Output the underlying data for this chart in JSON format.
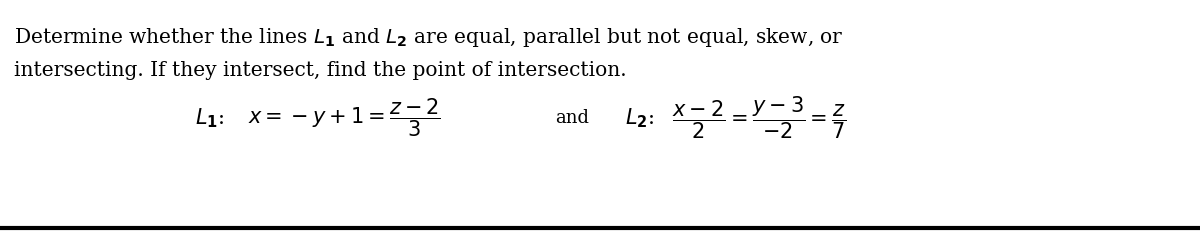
{
  "bg_color": "#ffffff",
  "text_color": "#000000",
  "title_line1": "Determine whether the lines $\\mathbf{\\mathit{L}_1}$ and $\\mathbf{\\mathit{L}_2}$ are equal, parallel but not equal, skew, or",
  "title_line2": "intersecting. If they intersect, find the point of intersection.",
  "l1_prefix": "$\\mathbf{\\mathit{L}_1}$: ",
  "l1_formula": "$x = -y + 1 = \\dfrac{z-2}{3}$",
  "and_text": "and",
  "l2_prefix": "$\\mathbf{\\mathit{L}_2}$: ",
  "l2_formula": "$\\dfrac{x-2}{2} = \\dfrac{y-3}{-2} = \\dfrac{z}{7}$",
  "font_size_title": 14.5,
  "font_size_formula": 15,
  "font_size_and": 13,
  "line_color": "#000000",
  "line_width": 3.0
}
